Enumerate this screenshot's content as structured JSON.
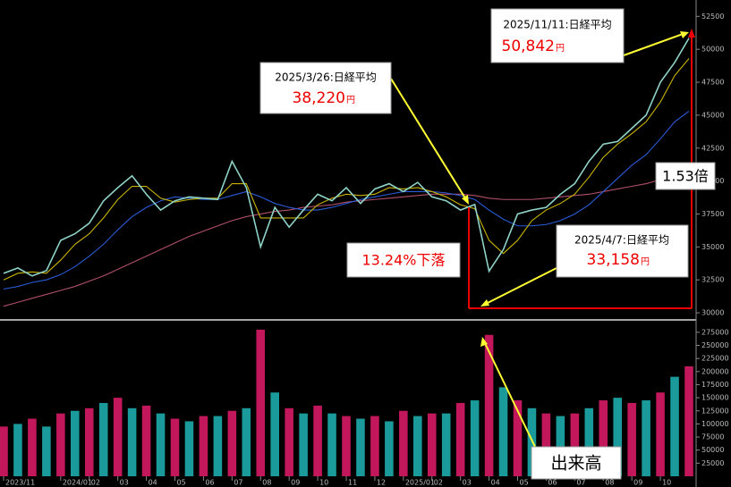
{
  "chart_data": {
    "type": "line",
    "categories": [
      "2023/11",
      null,
      null,
      null,
      "2024/01",
      null,
      "02",
      null,
      "03",
      null,
      "04",
      null,
      "05",
      null,
      "06",
      null,
      "07",
      null,
      "08",
      null,
      "09",
      null,
      "10",
      null,
      "11",
      null,
      "12",
      null,
      "2025/01",
      null,
      "02",
      null,
      "03",
      null,
      "04",
      null,
      "05",
      null,
      "06",
      null,
      "07",
      null,
      "08",
      null,
      "09",
      null,
      "10",
      null,
      null
    ],
    "series": [
      {
        "color": "#8fd3c8",
        "values": [
          33000,
          33400,
          32800,
          33200,
          35500,
          36000,
          36800,
          38500,
          39500,
          40400,
          39000,
          37800,
          38500,
          38800,
          38700,
          38600,
          41500,
          39500,
          35000,
          38000,
          36500,
          37800,
          39000,
          38500,
          39500,
          38300,
          39400,
          39800,
          39200,
          39900,
          38800,
          38500,
          37800,
          38220,
          33158,
          34800,
          37500,
          37800,
          38000,
          39000,
          39800,
          41500,
          42800,
          43000,
          44000,
          45000,
          47500,
          49000,
          50842
        ]
      },
      {
        "color": "#c8b400",
        "values": [
          32500,
          33000,
          33100,
          33000,
          34000,
          35200,
          36000,
          37200,
          38600,
          39600,
          39600,
          38700,
          38400,
          38600,
          38700,
          38700,
          39800,
          39800,
          37200,
          37200,
          37200,
          37200,
          38200,
          38700,
          39000,
          38900,
          39000,
          39500,
          39400,
          39500,
          39200,
          38800,
          38200,
          37900,
          35500,
          34500,
          35500,
          37000,
          37800,
          38300,
          39000,
          40300,
          41800,
          42800,
          43600,
          44500,
          46000,
          48000,
          49300
        ]
      },
      {
        "color": "#2a5bd7",
        "values": [
          31800,
          32000,
          32300,
          32500,
          32900,
          33500,
          34300,
          35200,
          36300,
          37300,
          38000,
          38500,
          38800,
          38700,
          38600,
          38600,
          38900,
          39200,
          38800,
          38300,
          38000,
          37800,
          37800,
          38000,
          38300,
          38600,
          38800,
          39000,
          39200,
          39200,
          39200,
          39100,
          38900,
          38600,
          37800,
          37100,
          36600,
          36600,
          36700,
          37000,
          37500,
          38200,
          39200,
          40200,
          41200,
          42000,
          43200,
          44500,
          45300
        ]
      },
      {
        "color": "#b0506a",
        "values": [
          30500,
          30800,
          31100,
          31400,
          31700,
          32000,
          32400,
          32800,
          33300,
          33800,
          34300,
          34800,
          35300,
          35800,
          36200,
          36600,
          37000,
          37300,
          37500,
          37700,
          37800,
          38000,
          38100,
          38200,
          38400,
          38500,
          38600,
          38700,
          38800,
          38900,
          39000,
          39000,
          39000,
          38900,
          38700,
          38600,
          38600,
          38600,
          38700,
          38800,
          38900,
          39000,
          39200,
          39400,
          39600,
          39800,
          40100,
          40500,
          40900
        ]
      }
    ],
    "ylim": [
      29800,
      53200
    ],
    "yticks": [
      30000,
      32500,
      35000,
      37500,
      40000,
      42500,
      45000,
      47500,
      50000,
      52500
    ],
    "volume": {
      "colors": [
        "#c2185b",
        "#1a9a9a"
      ],
      "ylim": [
        0,
        285000
      ],
      "yticks": [
        25000,
        50000,
        75000,
        100000,
        125000,
        150000,
        175000,
        200000,
        225000,
        250000,
        275000
      ],
      "values": [
        95000,
        100000,
        110000,
        95000,
        120000,
        125000,
        130000,
        140000,
        150000,
        130000,
        135000,
        120000,
        110000,
        105000,
        115000,
        115000,
        125000,
        130000,
        280000,
        160000,
        130000,
        120000,
        135000,
        120000,
        115000,
        110000,
        115000,
        105000,
        125000,
        115000,
        120000,
        120000,
        140000,
        145000,
        270000,
        170000,
        145000,
        130000,
        120000,
        115000,
        120000,
        130000,
        145000,
        150000,
        140000,
        145000,
        160000,
        190000,
        210000
      ]
    },
    "annotations": [
      {
        "title": "2025/11/11:日経平均",
        "value": "50,842",
        "unit": "円"
      },
      {
        "title": "2025/3/26:日経平均",
        "value": "38,220",
        "unit": "円"
      },
      {
        "title": "2025/4/7:日経平均",
        "value": "33,158",
        "unit": "円"
      },
      {
        "text": "13.24%下落"
      },
      {
        "text": "1.53倍"
      },
      {
        "text": "出来高"
      }
    ]
  }
}
